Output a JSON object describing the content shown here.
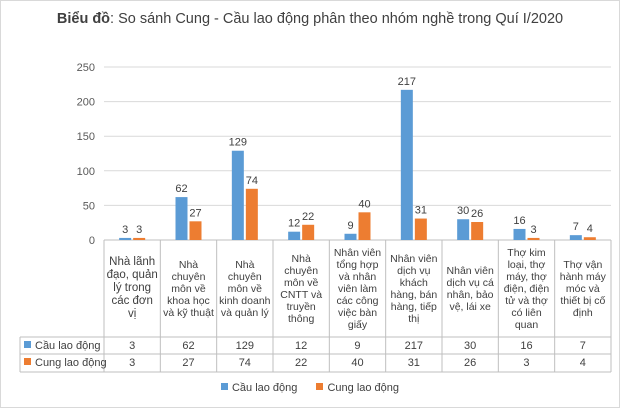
{
  "title": {
    "bold": "Biểu đồ",
    "rest": ": So sánh Cung - Cầu lao động phân theo nhóm nghề trong Quí I/2020"
  },
  "colors": {
    "cau": "#5b9bd5",
    "cung": "#ed7d31",
    "grid": "#d9d9d9",
    "axis": "#bfbfbf"
  },
  "chart_data": {
    "type": "bar",
    "title": "Biểu đồ: So sánh Cung - Cầu lao động phân theo nhóm nghề trong Quí I/2020",
    "categories": [
      "Nhà lãnh đạo, quản lý trong các đơn vị",
      "Nhà chuyên môn về khoa học và kỹ thuật",
      "Nhà chuyên môn về kinh doanh và quản lý",
      "Nhà chuyên môn về CNTT và truyền thông",
      "Nhân viên tổng hợp và nhân viên làm các công việc bàn giấy",
      "Nhân viên dịch vụ khách hàng, bán hàng, tiếp thị",
      "Nhân viên dịch vụ cá nhân, bảo vệ, lái xe",
      "Thợ kim loại, thợ máy, thợ điện, điện tử và thợ có liên quan",
      "Thợ vận hành máy móc và thiết bị cố định"
    ],
    "series": [
      {
        "name": "Cầu lao động",
        "values": [
          3,
          62,
          129,
          12,
          9,
          217,
          30,
          16,
          7
        ]
      },
      {
        "name": "Cung lao động",
        "values": [
          3,
          27,
          74,
          22,
          40,
          31,
          26,
          3,
          4
        ]
      }
    ],
    "ylim": [
      0,
      250
    ],
    "yticks": [
      0,
      50,
      100,
      150,
      200,
      250
    ],
    "grid": true,
    "legend": "bottom",
    "data_table": true
  }
}
